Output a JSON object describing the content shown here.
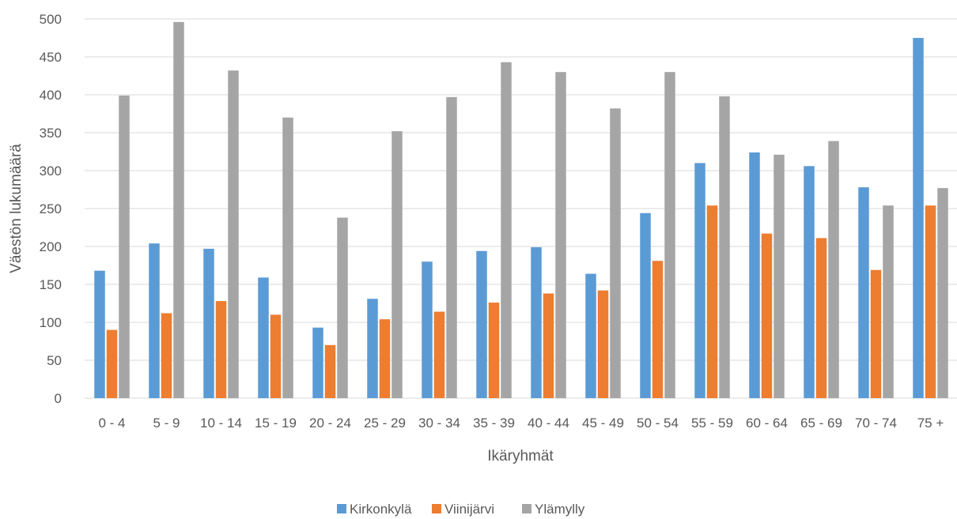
{
  "chart_data": {
    "type": "bar",
    "title": "",
    "xlabel": "Ikäryhmät",
    "ylabel": "Väestön lukumäärä",
    "ylim": [
      0,
      500
    ],
    "yticks": [
      0,
      50,
      100,
      150,
      200,
      250,
      300,
      350,
      400,
      450,
      500
    ],
    "grid": true,
    "legend_position": "bottom",
    "categories": [
      "0 - 4",
      "5 - 9",
      "10 - 14",
      "15 - 19",
      "20 - 24",
      "25 - 29",
      "30 - 34",
      "35 - 39",
      "40 - 44",
      "45 - 49",
      "50 - 54",
      "55 - 59",
      "60 - 64",
      "65 - 69",
      "70 - 74",
      "75 +"
    ],
    "series": [
      {
        "name": "Kirkonkylä",
        "color": "#5b9bd5",
        "values": [
          168,
          204,
          197,
          159,
          93,
          131,
          180,
          194,
          199,
          164,
          244,
          310,
          324,
          306,
          278,
          475
        ]
      },
      {
        "name": "Viinijärvi",
        "color": "#ed7d31",
        "values": [
          90,
          112,
          128,
          110,
          70,
          104,
          114,
          126,
          138,
          142,
          181,
          254,
          217,
          211,
          169,
          254
        ]
      },
      {
        "name": "Ylämylly",
        "color": "#a5a5a5",
        "values": [
          399,
          496,
          432,
          370,
          238,
          352,
          397,
          443,
          430,
          382,
          430,
          398,
          321,
          339,
          254,
          277
        ]
      }
    ]
  }
}
